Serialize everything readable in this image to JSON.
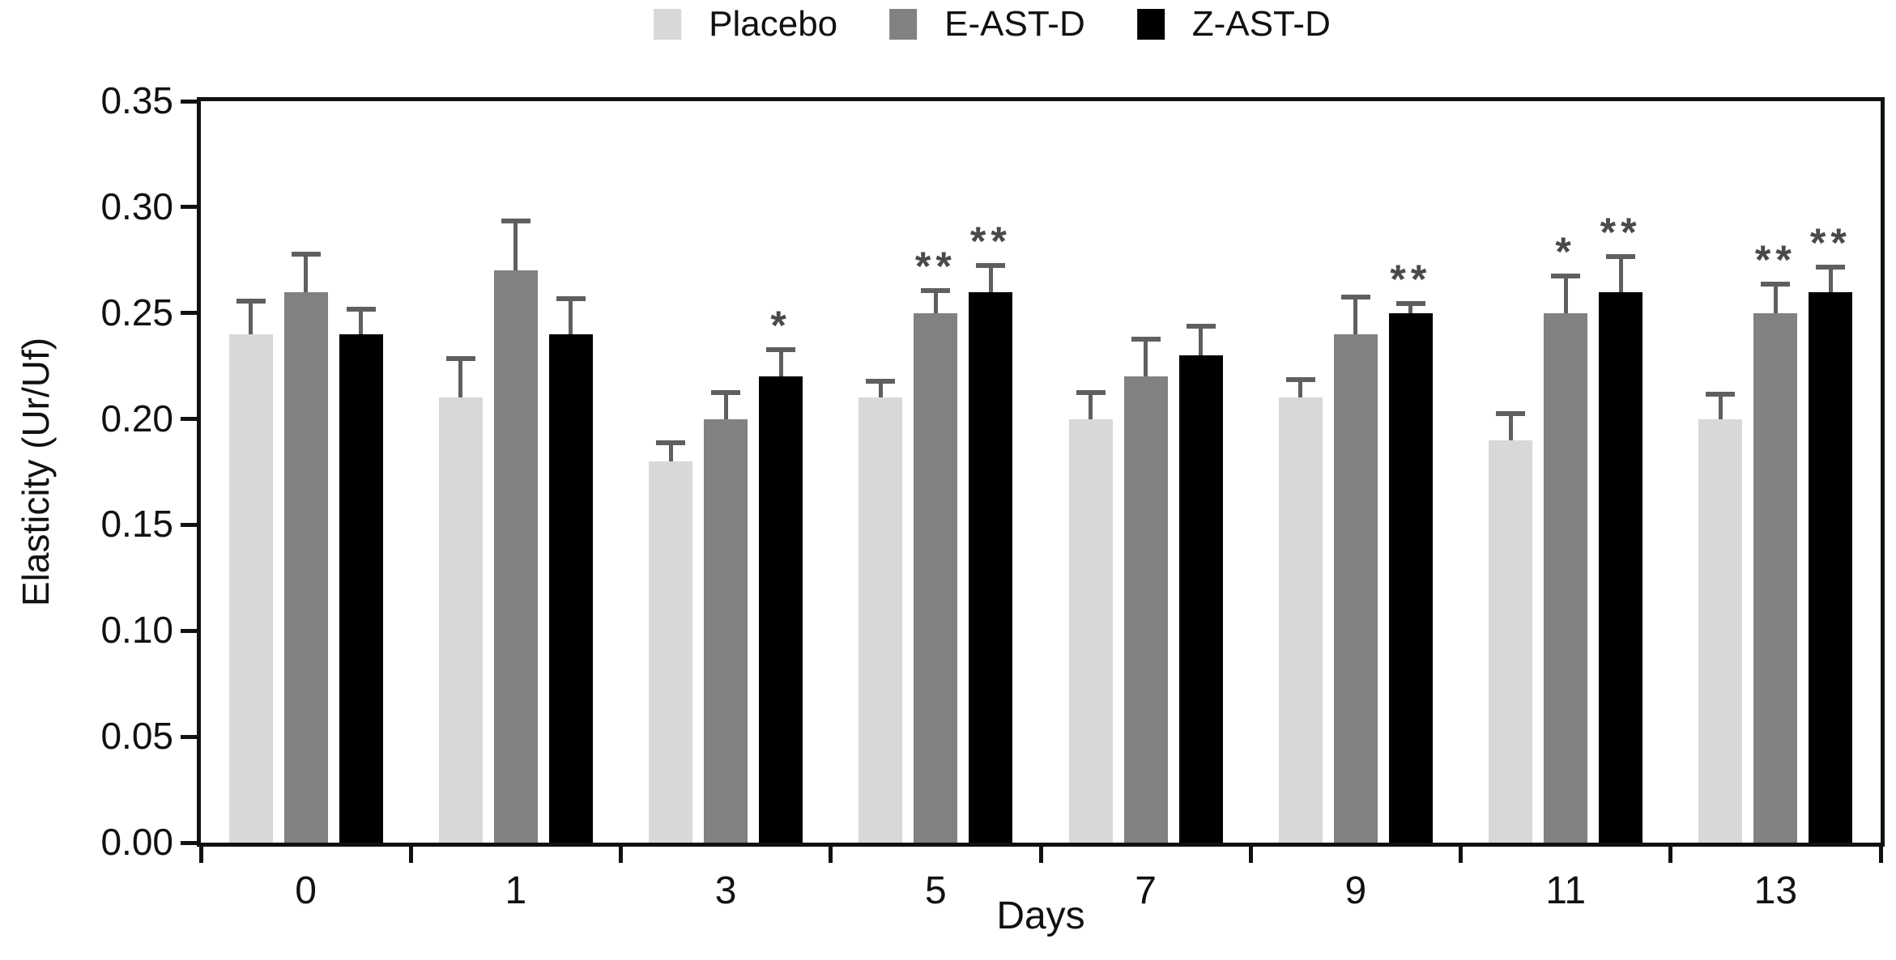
{
  "figure": {
    "background": "#ffffff",
    "text_color": "#111111"
  },
  "chart_data": {
    "type": "bar",
    "title": "",
    "xlabel": "Days",
    "ylabel": "Elasticity (Ur/Uf)",
    "categories": [
      "0",
      "1",
      "3",
      "5",
      "7",
      "9",
      "11",
      "13"
    ],
    "y_ticks": [
      "0.00",
      "0.05",
      "0.10",
      "0.15",
      "0.20",
      "0.25",
      "0.30",
      "0.35"
    ],
    "ylim": [
      0,
      0.35
    ],
    "grid": false,
    "legend_position": "top-center",
    "error_bars": "upper-only",
    "series": [
      {
        "name": "Placebo",
        "color": "#d8d8d8",
        "values": [
          0.24,
          0.21,
          0.18,
          0.21,
          0.2,
          0.21,
          0.19,
          0.2
        ],
        "errors": [
          0.016,
          0.019,
          0.009,
          0.008,
          0.013,
          0.009,
          0.013,
          0.012
        ],
        "sig": [
          "",
          "",
          "",
          "",
          "",
          "",
          "",
          ""
        ]
      },
      {
        "name": "E-AST-D",
        "color": "#818181",
        "values": [
          0.26,
          0.27,
          0.2,
          0.25,
          0.22,
          0.24,
          0.25,
          0.25
        ],
        "errors": [
          0.018,
          0.024,
          0.013,
          0.011,
          0.018,
          0.018,
          0.018,
          0.014
        ],
        "sig": [
          "",
          "",
          "",
          "**",
          "",
          "",
          "*",
          "**"
        ]
      },
      {
        "name": "Z-AST-D",
        "color": "#000000",
        "values": [
          0.24,
          0.24,
          0.22,
          0.26,
          0.23,
          0.25,
          0.26,
          0.26
        ],
        "errors": [
          0.012,
          0.017,
          0.013,
          0.013,
          0.014,
          0.005,
          0.017,
          0.012
        ],
        "sig": [
          "",
          "",
          "*",
          "**",
          "",
          "**",
          "**",
          "**"
        ]
      }
    ],
    "style": {
      "axis_color": "#111111",
      "error_bar_color": "#5f5f5f",
      "sig_marker_color": "#4a4a4a"
    }
  }
}
